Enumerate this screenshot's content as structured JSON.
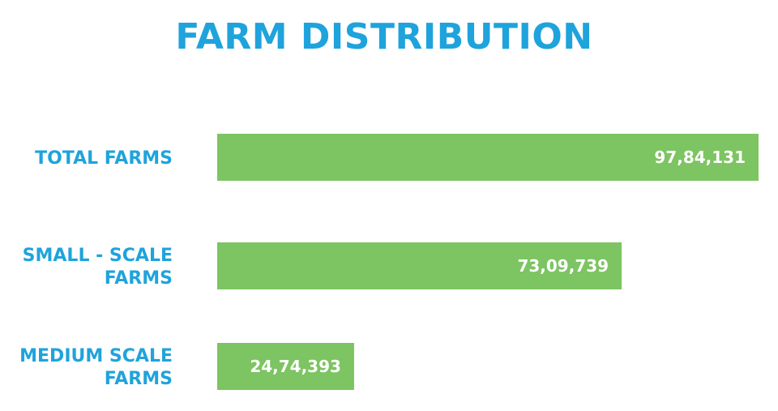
{
  "chart_data": {
    "type": "bar",
    "orientation": "horizontal",
    "title": "FARM DISTRIBUTION",
    "categories": [
      [
        "TOTAL FARMS"
      ],
      [
        "SMALL - SCALE",
        "FARMS"
      ],
      [
        "MEDIUM SCALE",
        "FARMS"
      ]
    ],
    "values": [
      9784131,
      7309739,
      2474393
    ],
    "value_labels": [
      "97,84,131",
      "73,09,739",
      "24,74,393"
    ],
    "xlim": [
      0,
      9784131
    ],
    "bar_color": "#7dc462",
    "label_color": "#1fa3dc",
    "grid": false,
    "legend": "none"
  }
}
